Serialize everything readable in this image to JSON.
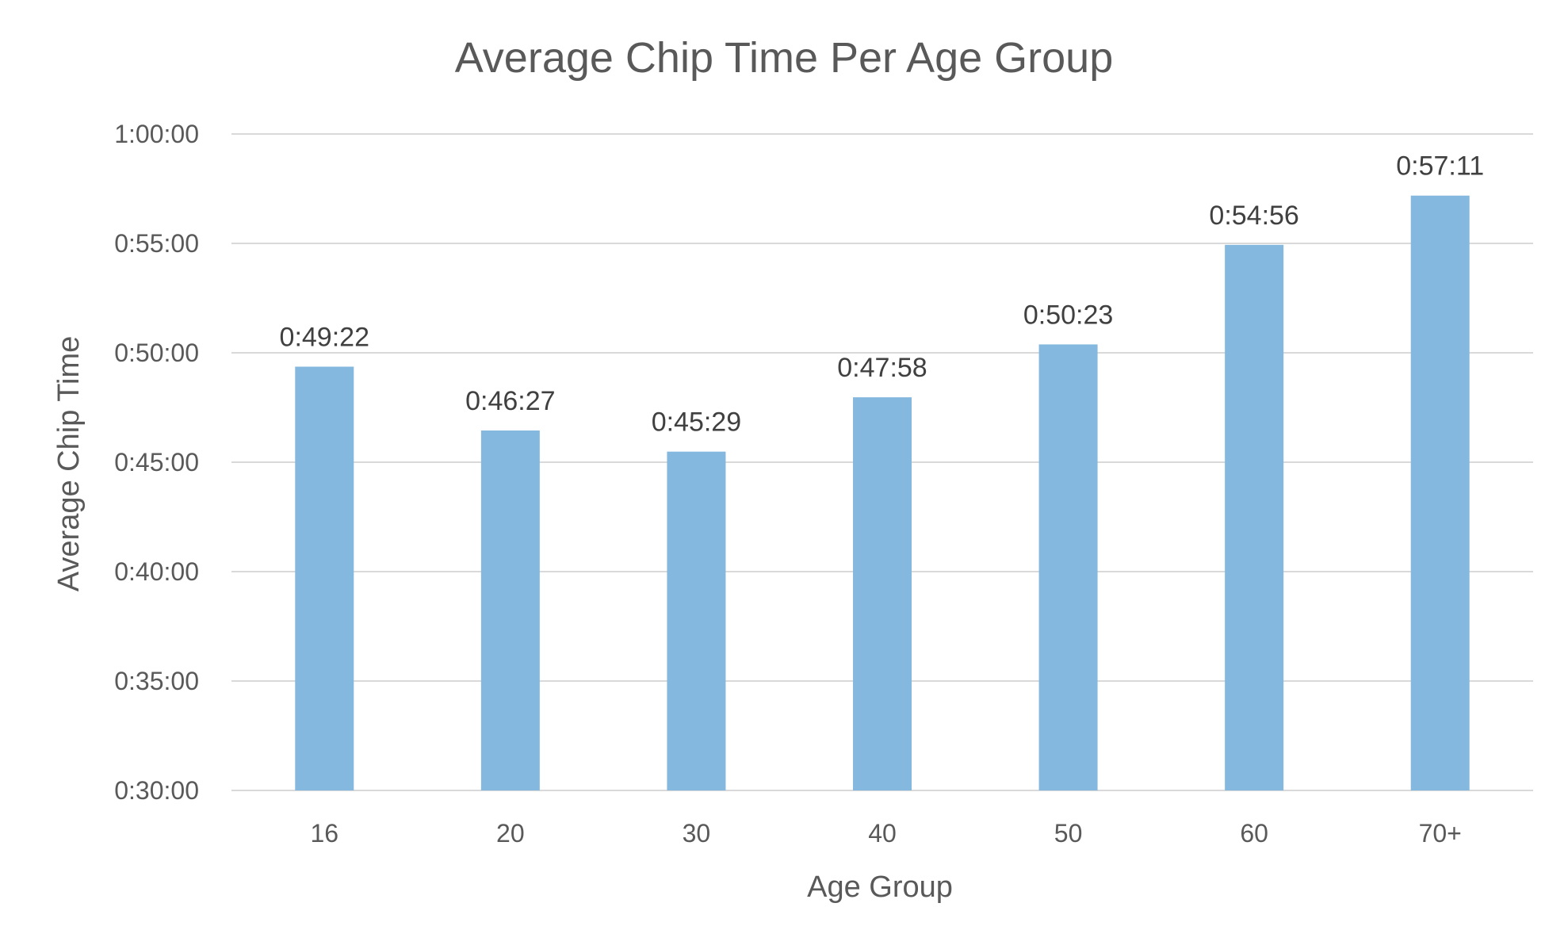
{
  "chart_data": {
    "type": "bar",
    "title": "Average Chip Time Per Age Group",
    "xlabel": "Age Group",
    "ylabel": "Average Chip Time",
    "categories": [
      "16",
      "20",
      "30",
      "40",
      "50",
      "60",
      "70+"
    ],
    "values_seconds": [
      2962,
      2787,
      2729,
      2878,
      3023,
      3296,
      3431
    ],
    "data_labels": [
      "0:49:22",
      "0:46:27",
      "0:45:29",
      "0:47:58",
      "0:50:23",
      "0:54:56",
      "0:57:11"
    ],
    "ylim_seconds": [
      1800,
      3600
    ],
    "y_ticks_seconds": [
      1800,
      2100,
      2400,
      2700,
      3000,
      3300,
      3600
    ],
    "y_tick_labels": [
      "0:30:00",
      "0:35:00",
      "0:40:00",
      "0:45:00",
      "0:50:00",
      "0:55:00",
      "1:00:00"
    ],
    "grid": true,
    "legend": "none",
    "bar_color": "#85b8df"
  }
}
